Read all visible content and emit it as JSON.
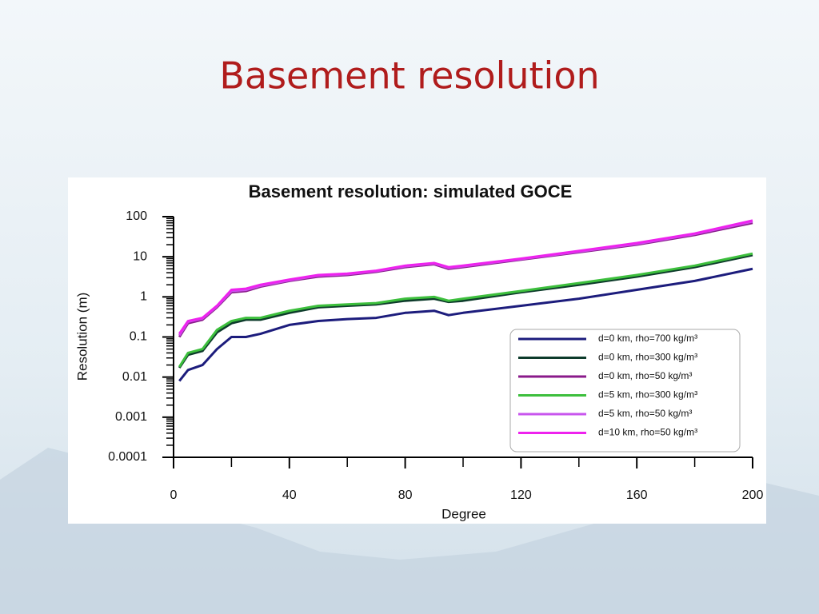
{
  "slide_title": "Basement resolution",
  "chart_data": {
    "type": "line",
    "title": "Basement resolution: simulated GOCE",
    "x_label": "Degree",
    "y_label": "Resolution (m)",
    "yscale": "log",
    "xlim": [
      0,
      200
    ],
    "xticks": [
      0,
      40,
      80,
      120,
      160,
      200
    ],
    "ylim": [
      0.0001,
      100
    ],
    "yticks": [
      100,
      10,
      1,
      0.1,
      0.01,
      0.001,
      0.0001
    ],
    "legend": "lower right",
    "x": [
      2,
      5,
      10,
      15,
      20,
      25,
      30,
      40,
      50,
      60,
      70,
      80,
      90,
      95,
      100,
      120,
      140,
      160,
      180,
      200
    ],
    "series": [
      {
        "name": "d=0 km, rho=700 kg/m³",
        "color": "#1c1c7c",
        "values": [
          0.008,
          0.015,
          0.02,
          0.05,
          0.1,
          0.1,
          0.12,
          0.2,
          0.25,
          0.28,
          0.3,
          0.4,
          0.45,
          0.35,
          0.4,
          0.6,
          0.9,
          1.5,
          2.5,
          5
        ]
      },
      {
        "name": "d=0 km, rho=300 kg/m³",
        "color": "#0d3b2b",
        "values": [
          0.017,
          0.036,
          0.045,
          0.13,
          0.22,
          0.27,
          0.27,
          0.4,
          0.55,
          0.6,
          0.65,
          0.8,
          0.9,
          0.75,
          0.8,
          1.3,
          2,
          3.2,
          5.5,
          11
        ]
      },
      {
        "name": "d=0 km, rho=50 kg/m³",
        "color": "#8a1a8a",
        "values": [
          0.1,
          0.22,
          0.27,
          0.55,
          1.3,
          1.4,
          1.8,
          2.5,
          3.2,
          3.5,
          4.2,
          5.5,
          6.5,
          5,
          5.5,
          8.5,
          13,
          20,
          35,
          70
        ]
      },
      {
        "name": "d=5 km, rho=300 kg/m³",
        "color": "#3dbf3d",
        "values": [
          0.018,
          0.04,
          0.05,
          0.15,
          0.25,
          0.3,
          0.3,
          0.45,
          0.6,
          0.65,
          0.7,
          0.9,
          1,
          0.8,
          0.9,
          1.4,
          2.2,
          3.5,
          6,
          12
        ]
      },
      {
        "name": "d=5 km, rho=50 kg/m³",
        "color": "#c855ee",
        "values": [
          0.11,
          0.24,
          0.29,
          0.58,
          1.4,
          1.5,
          1.9,
          2.6,
          3.4,
          3.7,
          4.4,
          5.8,
          6.8,
          5.3,
          5.8,
          8.8,
          13.5,
          21,
          37,
          76
        ]
      },
      {
        "name": "d=10 km, rho=50 kg/m³",
        "color": "#ee22ee",
        "values": [
          0.12,
          0.25,
          0.3,
          0.6,
          1.5,
          1.6,
          2,
          2.7,
          3.5,
          3.8,
          4.5,
          6,
          7,
          5.5,
          6,
          9,
          14,
          22,
          38,
          80
        ]
      }
    ]
  }
}
